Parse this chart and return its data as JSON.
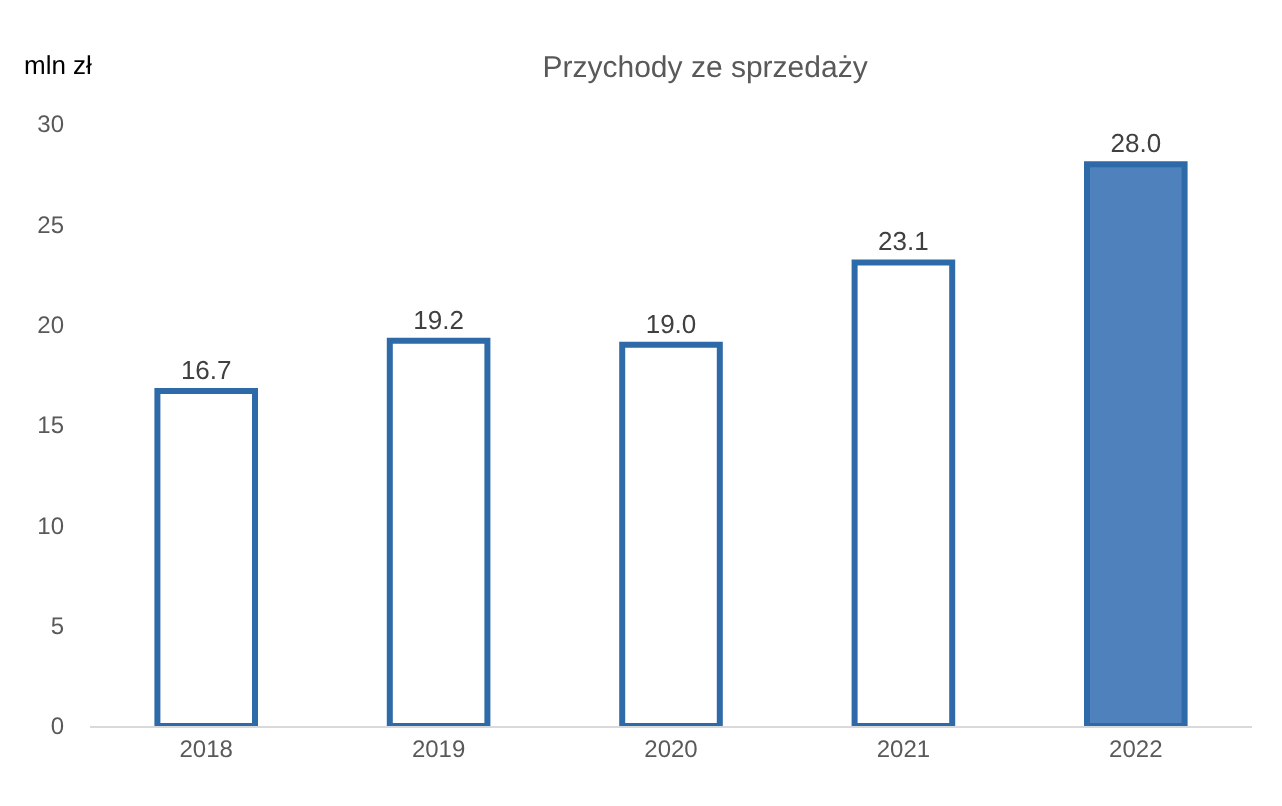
{
  "chart_data": {
    "type": "bar",
    "title": "Przychody ze sprzedaży",
    "ylabel": "mln zł",
    "categories": [
      "2018",
      "2019",
      "2020",
      "2021",
      "2022"
    ],
    "values": [
      16.7,
      19.2,
      19.0,
      23.1,
      28.0
    ],
    "colors": [
      "#ffffff",
      "#ffffff",
      "#ffffff",
      "#ffffff",
      "#4f81bd"
    ],
    "value_labels": [
      "16.7",
      "19.2",
      "19.0",
      "23.1",
      "28.0"
    ],
    "ylim": [
      0,
      30
    ],
    "yticks": [
      0,
      5,
      10,
      15,
      20,
      25,
      30
    ],
    "grid": false
  }
}
